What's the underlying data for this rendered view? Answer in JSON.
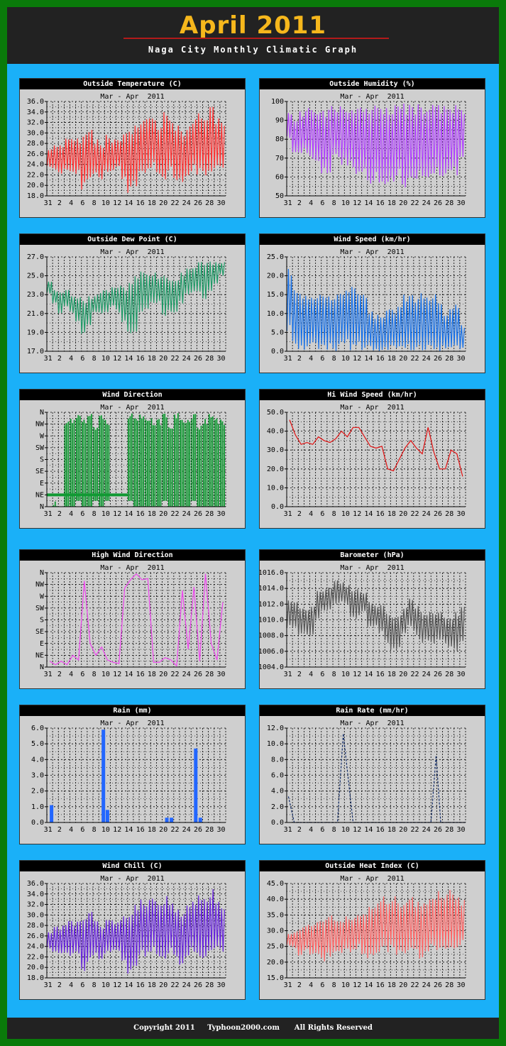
{
  "header": {
    "title": "April 2011",
    "subtitle": "Naga City Monthly  Climatic Graph"
  },
  "footer": {
    "text": "Copyright 2011     Typhoon2000.com      All Rights Reserved"
  },
  "x_axis_ticks": [
    "31",
    "2",
    "4",
    "6",
    "8",
    "10",
    "12",
    "14",
    "16",
    "18",
    "20",
    "22",
    "24",
    "26",
    "28",
    "30"
  ],
  "direction_ticks": [
    "N",
    "NE",
    "E",
    "SE",
    "S",
    "SW",
    "W",
    "NW",
    "N"
  ],
  "chart_data": [
    {
      "id": "temp",
      "title": "Outside Temperature (C)",
      "subtitle": "Mar - Apr  2011",
      "type": "line",
      "color": "#ff3333",
      "ylim": [
        18,
        36
      ],
      "yticks": [
        18.0,
        20.0,
        22.0,
        24.0,
        26.0,
        28.0,
        30.0,
        32.0,
        34.0,
        36.0
      ],
      "ydec": 1,
      "daily_min": [
        23.5,
        23,
        22,
        22.5,
        22,
        22,
        19,
        20.5,
        22,
        21,
        22.5,
        22.5,
        23,
        21,
        18.5,
        19,
        22,
        22,
        23,
        21,
        20.5,
        22.5,
        21,
        20.5,
        21,
        22.5,
        22,
        21.5,
        22.5,
        22.5,
        23
      ],
      "daily_max": [
        27,
        28,
        28,
        29,
        29,
        29,
        30,
        31,
        29,
        28,
        30,
        29,
        29,
        30,
        31,
        32,
        33,
        33,
        34,
        32,
        34,
        33,
        32,
        31,
        32,
        33,
        34,
        34,
        35,
        33,
        32
      ]
    },
    {
      "id": "hum",
      "title": "Outside Humidity (%)",
      "subtitle": "Mar - Apr  2011",
      "type": "line",
      "color": "#b040ff",
      "ylim": [
        50,
        100
      ],
      "yticks": [
        50,
        60,
        70,
        80,
        90,
        100
      ],
      "ydec": 0,
      "daily_min": [
        80,
        72,
        70,
        72,
        68,
        65,
        60,
        62,
        68,
        66,
        65,
        64,
        60,
        62,
        56,
        58,
        55,
        56,
        54,
        60,
        52,
        57,
        58,
        60,
        58,
        60,
        60,
        58,
        58,
        60,
        70
      ],
      "daily_max": [
        94,
        92,
        95,
        97,
        97,
        98,
        97,
        98,
        97,
        98,
        98,
        99,
        99,
        99,
        99,
        99,
        99,
        99,
        99,
        99,
        99,
        99,
        99,
        99,
        99,
        99,
        99,
        99,
        99,
        98,
        97
      ]
    },
    {
      "id": "dew",
      "title": "Outside Dew Point (C)",
      "subtitle": "Mar - Apr  2011",
      "type": "line",
      "color": "#1e9966",
      "ylim": [
        17,
        27
      ],
      "yticks": [
        17.0,
        19.0,
        21.0,
        23.0,
        25.0,
        27.0
      ],
      "ydec": 1,
      "daily_min": [
        23,
        22,
        21,
        21.5,
        21,
        20,
        18.5,
        19.5,
        21,
        21,
        21,
        21.5,
        21,
        20,
        18.5,
        19,
        21,
        21,
        22,
        22,
        20.5,
        21,
        21,
        22,
        23,
        23,
        23,
        22.5,
        23,
        24,
        25
      ],
      "daily_max": [
        24.5,
        23.5,
        23.5,
        23.5,
        23,
        23,
        22.5,
        23,
        23,
        23.5,
        23.5,
        24,
        24,
        24,
        24.5,
        25,
        25.5,
        25.5,
        25.5,
        25,
        25,
        25,
        25,
        25.5,
        26,
        26,
        26.5,
        26.5,
        26.5,
        26.5,
        26.5
      ]
    },
    {
      "id": "wind",
      "title": "Wind Speed (km/hr)",
      "subtitle": "Mar - Apr  2011",
      "type": "line",
      "color": "#1670e8",
      "ylim": [
        0,
        25
      ],
      "yticks": [
        0.0,
        5.0,
        10.0,
        15.0,
        20.0,
        25.0
      ],
      "ydec": 1,
      "daily_min": [
        5,
        2,
        0,
        0,
        0,
        0,
        0,
        0,
        0,
        0,
        2,
        0,
        0,
        0,
        0,
        0,
        0,
        0,
        0,
        0,
        0,
        0,
        0,
        0,
        0,
        0,
        0,
        0,
        0,
        0,
        0
      ],
      "daily_max": [
        22,
        17,
        16,
        16,
        16,
        16,
        15,
        15,
        16,
        17,
        17,
        18,
        17,
        15,
        11,
        10,
        10,
        12,
        11,
        12,
        15,
        16,
        15,
        16,
        15,
        16,
        13,
        11,
        12,
        13,
        7
      ]
    },
    {
      "id": "wdir",
      "title": "Wind Direction",
      "subtitle": "Mar - Apr  2011",
      "type": "bars-dir",
      "color": "#119933",
      "ylim": [
        0,
        8
      ],
      "daily_dir": [
        0.5,
        0.5,
        0.5,
        7.5,
        7.5,
        8,
        7.5,
        8,
        7,
        8,
        7.5,
        0.5,
        0.5,
        0.5,
        8,
        7.5,
        8,
        7.5,
        7.5,
        7.5,
        8,
        7,
        8,
        7.5,
        7.5,
        8,
        7,
        7.5,
        8,
        7.5,
        7.5
      ],
      "daily_low": [
        0.5,
        0,
        0,
        0,
        0,
        0.5,
        0,
        0,
        0.5,
        0,
        0.5,
        0.5,
        0.5,
        0.5,
        0.5,
        0,
        0,
        0,
        0,
        0,
        0.5,
        0,
        0,
        0,
        0,
        0.5,
        0,
        0,
        0,
        0,
        0
      ]
    },
    {
      "id": "hiwind",
      "title": "Hi Wind Speed (km/hr)",
      "subtitle": "Mar - Apr  2011",
      "type": "line",
      "color": "#e01010",
      "ylim": [
        0,
        50
      ],
      "yticks": [
        0.0,
        10.0,
        20.0,
        30.0,
        40.0,
        50.0
      ],
      "ydec": 1,
      "daily": [
        46,
        38,
        33,
        34,
        33,
        37,
        35,
        34,
        36,
        40,
        37,
        42,
        42,
        37,
        32,
        31,
        32,
        20,
        19,
        25,
        31,
        35,
        31,
        28,
        42,
        29,
        20,
        20,
        30,
        28,
        16
      ]
    },
    {
      "id": "hidir",
      "title": "High Wind Direction",
      "subtitle": "Mar - Apr  2011",
      "type": "line",
      "color": "#ee44ee",
      "ylim": [
        0,
        8
      ],
      "daily": [
        0.5,
        0.2,
        0.5,
        0.2,
        1,
        0.6,
        7.3,
        2,
        1,
        1.7,
        0.6,
        0.4,
        0.3,
        6.7,
        7.4,
        7.9,
        7.4,
        7.5,
        0.4,
        0.4,
        0.8,
        0.6,
        0.1,
        6.5,
        1.5,
        6.8,
        0.5,
        7.9,
        2,
        0.6,
        5.5
      ]
    },
    {
      "id": "baro",
      "title": "Barometer (hPa)",
      "subtitle": "Mar - Apr  2011",
      "type": "line",
      "color": "#555555",
      "ylim": [
        1004,
        1016
      ],
      "yticks": [
        1004.0,
        1006.0,
        1008.0,
        1010.0,
        1012.0,
        1014.0,
        1016.0
      ],
      "ydec": 1,
      "daily_min": [
        1009,
        1009,
        1008,
        1008,
        1008,
        1010,
        1011,
        1011,
        1012,
        1012,
        1012,
        1010,
        1010,
        1011,
        1009,
        1009,
        1008,
        1007,
        1006,
        1006,
        1008,
        1009,
        1008,
        1007,
        1007,
        1007,
        1007,
        1007,
        1006,
        1006,
        1007
      ],
      "daily_max": [
        1012.5,
        1012.5,
        1012,
        1011.5,
        1012,
        1014,
        1014,
        1014.5,
        1015,
        1015,
        1014.5,
        1014,
        1014,
        1013.5,
        1012.5,
        1012,
        1012,
        1011,
        1010.5,
        1011,
        1012,
        1013,
        1012,
        1011,
        1011,
        1011,
        1011,
        1010.5,
        1010.5,
        1011,
        1012
      ]
    },
    {
      "id": "rain",
      "title": "Rain (mm)",
      "subtitle": "Mar - Apr  2011",
      "type": "bar",
      "color": "#2266ff",
      "ylim": [
        0,
        6
      ],
      "yticks": [
        0.0,
        1.0,
        2.0,
        3.0,
        4.0,
        5.0,
        6.0
      ],
      "ydec": 1,
      "days": [
        0.5,
        9.5,
        10.2,
        20.5,
        21.3,
        25.5,
        26.3
      ],
      "values": [
        1.1,
        5.9,
        0.8,
        0.3,
        0.3,
        4.7,
        0.3
      ]
    },
    {
      "id": "rainrate",
      "title": "Rain Rate (mm/hr)",
      "subtitle": "Mar - Apr  2011",
      "type": "line-dash",
      "color": "#102a66",
      "ylim": [
        0,
        12
      ],
      "yticks": [
        0.0,
        2.0,
        4.0,
        6.0,
        8.0,
        10.0,
        12.0
      ],
      "ydec": 1,
      "points": [
        [
          0.3,
          3.3
        ],
        [
          1.3,
          0
        ],
        [
          8.8,
          0
        ],
        [
          9.8,
          11.3
        ],
        [
          11.5,
          0
        ],
        [
          25.0,
          0
        ],
        [
          25.9,
          8.5
        ],
        [
          26.7,
          0
        ],
        [
          31,
          0
        ]
      ]
    },
    {
      "id": "chill",
      "title": "Wind Chill (C)",
      "subtitle": "Mar - Apr  2011",
      "type": "line",
      "color": "#6622dd",
      "ylim": [
        18,
        36
      ],
      "yticks": [
        18.0,
        20.0,
        22.0,
        24.0,
        26.0,
        28.0,
        30.0,
        32.0,
        34.0,
        36.0
      ],
      "ydec": 1,
      "daily_min": [
        23.5,
        23,
        22,
        22.5,
        22,
        22,
        19,
        20.5,
        22,
        21,
        22.5,
        22.5,
        23,
        21,
        18.5,
        19,
        22,
        22,
        23,
        21,
        20.5,
        22.5,
        21,
        20.5,
        21,
        22.5,
        22,
        21.5,
        22.5,
        22.5,
        23
      ],
      "daily_max": [
        27,
        28,
        28,
        29,
        29,
        29,
        30,
        31,
        29,
        28,
        30,
        29,
        29,
        30,
        31,
        32,
        33,
        33,
        34,
        32,
        34,
        33,
        32,
        31,
        32,
        33,
        34,
        34,
        35,
        33,
        32
      ]
    },
    {
      "id": "heat",
      "title": "Outside Heat Index (C)",
      "subtitle": "Mar - Apr  2011",
      "type": "line",
      "color": "#ff6666",
      "ylim": [
        15,
        45
      ],
      "yticks": [
        15.0,
        20.0,
        25.0,
        30.0,
        35.0,
        40.0,
        45.0
      ],
      "ydec": 1,
      "daily_min": [
        25,
        24,
        22,
        23,
        22,
        22,
        20,
        21,
        23,
        22,
        23,
        23,
        24,
        22,
        20,
        20,
        23,
        23,
        24,
        22,
        21,
        23,
        22,
        21,
        22,
        23,
        23,
        22,
        24,
        24,
        25
      ],
      "daily_max": [
        29,
        30,
        31,
        32,
        32,
        33,
        34,
        35,
        34,
        33,
        35,
        35,
        36,
        37,
        38,
        40,
        41,
        41,
        41,
        40,
        41,
        41,
        40,
        40,
        41,
        42,
        43,
        43,
        44,
        42,
        40
      ]
    }
  ]
}
